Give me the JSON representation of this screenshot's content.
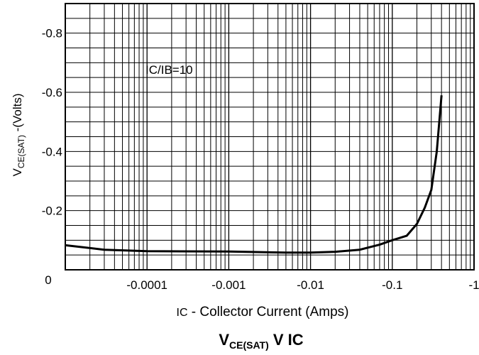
{
  "chart_data": {
    "type": "line",
    "title": {
      "main": "V",
      "sub": "CE(SAT)",
      "rest": " V IC"
    },
    "xlabel": {
      "prefix": "IC",
      "text": " - Collector Current (Amps)"
    },
    "ylabel": {
      "main": "V",
      "sub": "CE(SAT)",
      "rest": " -(Volts)"
    },
    "annotation": "IC/IB=10",
    "x_scale": "log",
    "xlim": [
      -1e-05,
      -1
    ],
    "ylim": [
      0,
      -0.9
    ],
    "x_ticks": [
      {
        "value": -0.0001,
        "label": "-0.0001"
      },
      {
        "value": -0.001,
        "label": "-0.001"
      },
      {
        "value": -0.01,
        "label": "-0.01"
      },
      {
        "value": -0.1,
        "label": "-0.1"
      },
      {
        "value": -1,
        "label": "-1"
      }
    ],
    "y_ticks": [
      {
        "value": 0,
        "label": "0"
      },
      {
        "value": -0.2,
        "label": "-0.2"
      },
      {
        "value": -0.4,
        "label": "-0.4"
      },
      {
        "value": -0.6,
        "label": "-0.6"
      },
      {
        "value": -0.8,
        "label": "-0.8"
      }
    ],
    "grid": true,
    "series": [
      {
        "x": [
          -1e-05,
          -3e-05,
          -0.0001,
          -0.001,
          -0.005,
          -0.01,
          -0.02,
          -0.04,
          -0.07,
          -0.1,
          -0.15,
          -0.2,
          -0.25,
          -0.3,
          -0.35,
          -0.4
        ],
        "y": [
          -0.083,
          -0.068,
          -0.063,
          -0.062,
          -0.058,
          -0.058,
          -0.061,
          -0.068,
          -0.085,
          -0.1,
          -0.115,
          -0.155,
          -0.21,
          -0.27,
          -0.4,
          -0.59
        ]
      }
    ]
  }
}
